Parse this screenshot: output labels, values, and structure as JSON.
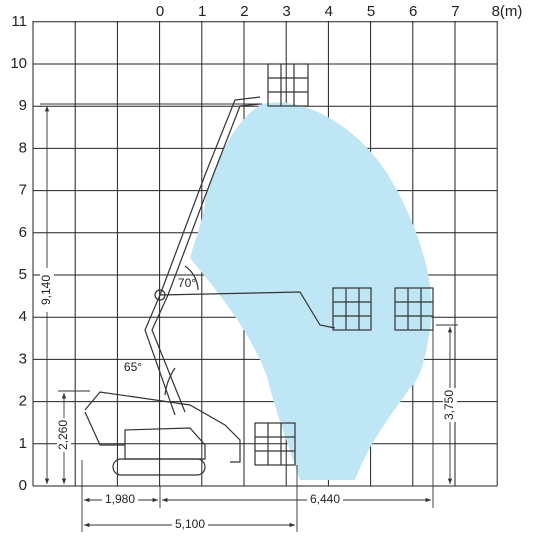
{
  "x_axis": {
    "labels": [
      "0",
      "1",
      "2",
      "3",
      "4",
      "5",
      "6",
      "7",
      "8(m)"
    ]
  },
  "y_axis": {
    "labels": [
      "0",
      "1",
      "2",
      "3",
      "4",
      "5",
      "6",
      "7",
      "8",
      "9",
      "10",
      "11"
    ]
  },
  "dimensions": [
    "9,140",
    "2,260",
    "1,980",
    "6,440",
    "5,100",
    "3,750"
  ],
  "angles": [
    "70°",
    "65°"
  ]
}
